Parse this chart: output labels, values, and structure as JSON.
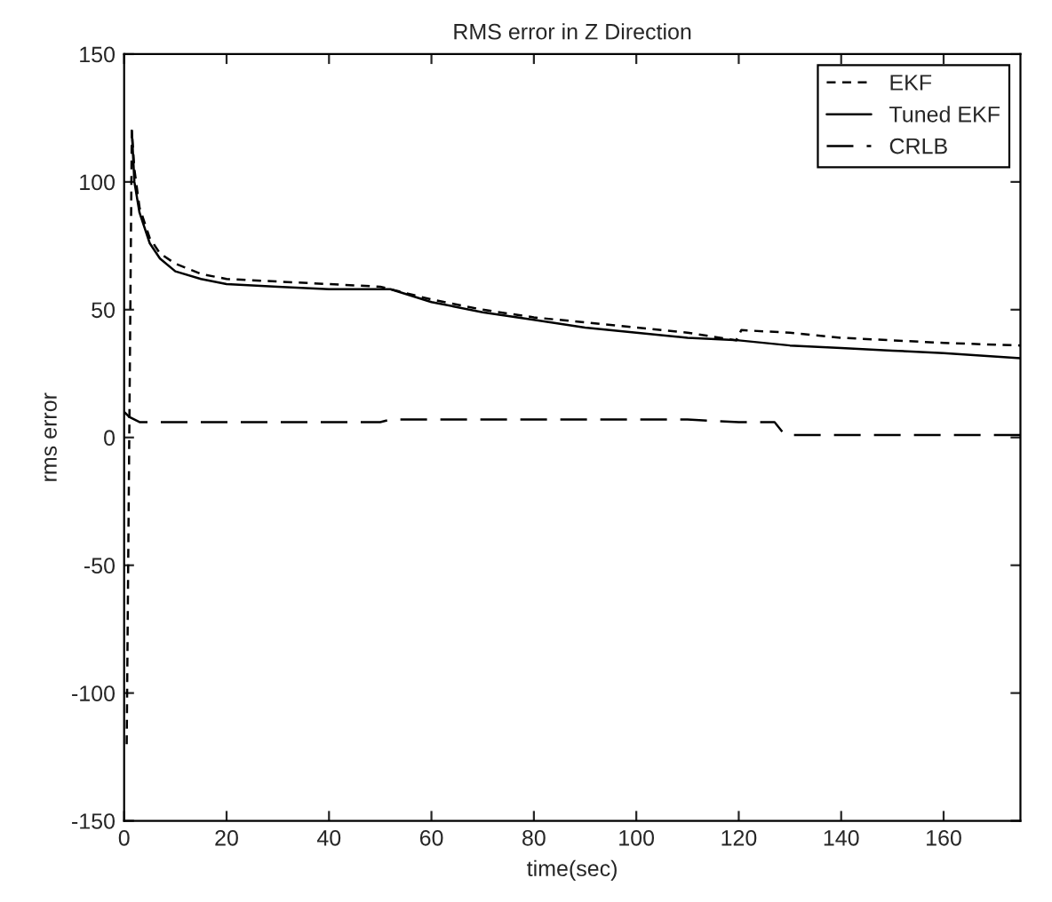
{
  "chart_data": {
    "type": "line",
    "title": "RMS error in Z Direction",
    "xlabel": "time(sec)",
    "ylabel": "rms error",
    "xlim": [
      0,
      175
    ],
    "xticks": [
      0,
      20,
      40,
      60,
      80,
      100,
      120,
      140,
      160
    ],
    "ylim": [
      -150,
      150
    ],
    "yticks": [
      -150,
      -100,
      -50,
      0,
      50,
      100,
      150
    ],
    "grid": false,
    "legend": "top right",
    "series": [
      {
        "name": "EKF",
        "color": "#000000",
        "line_style": "dashed",
        "x": [
          0.5,
          1.5,
          2,
          3,
          5,
          7,
          10,
          15,
          20,
          30,
          40,
          50,
          52,
          60,
          70,
          80,
          90,
          100,
          110,
          119.5,
          120.5,
          130,
          140,
          150,
          160,
          175
        ],
        "values": [
          -120,
          120,
          105,
          90,
          78,
          72,
          68,
          64,
          62,
          61,
          60,
          59,
          58,
          54,
          50,
          47,
          45,
          43,
          41,
          38,
          42,
          41,
          39,
          38,
          37,
          36
        ]
      },
      {
        "name": "Tuned EKF",
        "color": "#000000",
        "line_style": "solid",
        "x": [
          1.5,
          2,
          3,
          5,
          7,
          10,
          15,
          20,
          30,
          40,
          52,
          60,
          70,
          80,
          90,
          100,
          110,
          120,
          130,
          140,
          150,
          160,
          175
        ],
        "values": [
          120,
          100,
          88,
          76,
          70,
          65,
          62,
          60,
          59,
          58,
          58,
          53,
          49,
          46,
          43,
          41,
          39,
          38,
          36,
          35,
          34,
          33,
          31
        ]
      },
      {
        "name": "CRLB",
        "color": "#000000",
        "line_style": "longdash",
        "x": [
          0,
          1,
          3,
          50,
          52,
          110,
          120,
          127,
          129,
          175
        ],
        "values": [
          10,
          8,
          6,
          6,
          7,
          7,
          6,
          6,
          1,
          1
        ]
      }
    ]
  }
}
